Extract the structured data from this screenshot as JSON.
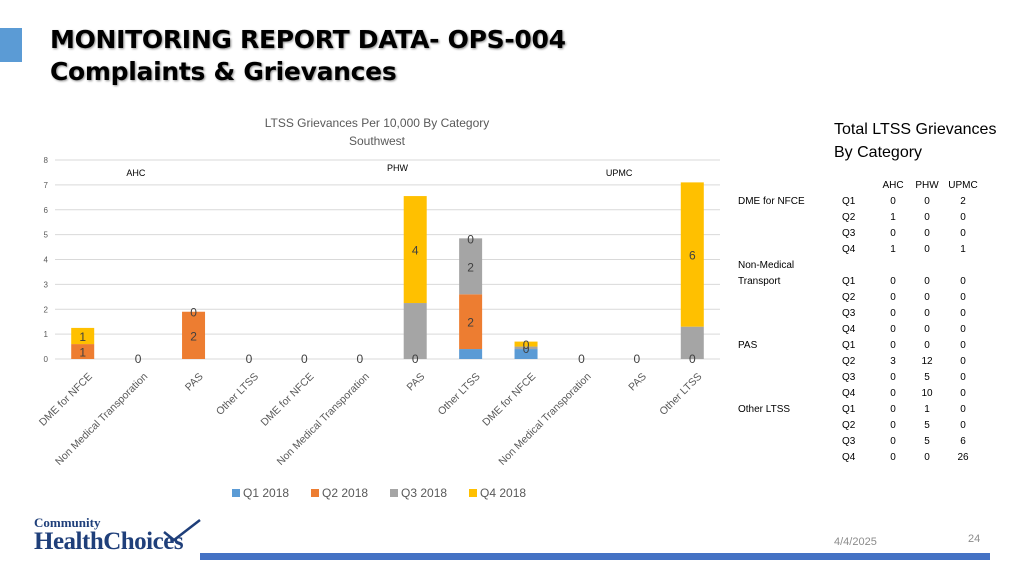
{
  "title": {
    "line1": "MONITORING REPORT DATA- OPS-004",
    "line2": "Complaints & Grievances"
  },
  "chart_data": {
    "type": "bar",
    "stacked": true,
    "title": "LTSS Grievances Per 10,000 By Category",
    "subtitle": "Southwest",
    "ylim": [
      0,
      8
    ],
    "yticks": [
      0,
      1,
      2,
      3,
      4,
      5,
      6,
      7,
      8
    ],
    "grid": true,
    "legend_position": "bottom",
    "categories": [
      "DME for NFCE",
      "Non Medical Transporation",
      "PAS",
      "Other LTSS",
      "DME for NFCE",
      "Non Medical Transporation",
      "PAS",
      "Other LTSS",
      "DME for NFCE",
      "Non Medical Transporation",
      "PAS",
      "Other LTSS"
    ],
    "groups": [
      {
        "name": "AHC",
        "start": 0,
        "end": 3
      },
      {
        "name": "PHW",
        "start": 4,
        "end": 7
      },
      {
        "name": "UPMC",
        "start": 8,
        "end": 11
      }
    ],
    "series": [
      {
        "name": "Q1 2018",
        "color": "#5b9bd5",
        "values": [
          0,
          0,
          0,
          0,
          0,
          0,
          0,
          0.4,
          0.4,
          0,
          0,
          0
        ]
      },
      {
        "name": "Q2 2018",
        "color": "#ed7d31",
        "values": [
          0.6,
          0,
          1.9,
          0,
          0,
          0,
          0,
          2.2,
          0,
          0,
          0,
          0
        ]
      },
      {
        "name": "Q3 2018",
        "color": "#a5a5a5",
        "values": [
          0,
          0,
          0,
          0,
          0,
          0,
          2.25,
          2.25,
          0.1,
          0,
          0,
          1.3
        ]
      },
      {
        "name": "Q4 2018",
        "color": "#ffc000",
        "values": [
          0.65,
          0,
          0,
          0,
          0,
          0,
          4.3,
          0,
          0.2,
          0,
          0,
          5.8
        ]
      }
    ],
    "labels": [
      [
        "",
        "",
        "",
        "",
        "",
        "",
        "",
        "",
        "",
        "",
        "",
        ""
      ],
      [
        "1",
        "",
        "2",
        "",
        "",
        "",
        "",
        "2",
        "",
        "",
        "",
        ""
      ],
      [
        "",
        "",
        "",
        "",
        "",
        "",
        "",
        "2",
        "0",
        "",
        "",
        ""
      ],
      [
        "1",
        "",
        "0",
        "",
        "",
        "",
        "4",
        "0",
        "0",
        "",
        "",
        "6"
      ]
    ],
    "zero_labels": [
      "",
      "0",
      "",
      "0",
      "0",
      "0",
      "0",
      "",
      "",
      "0",
      "0",
      "0"
    ]
  },
  "table": {
    "title_line1": "Total LTSS Grievances",
    "title_line2": "By Category",
    "headers": [
      "AHC",
      "PHW",
      "UPMC"
    ],
    "rows": [
      {
        "cat": "DME for NFCE",
        "q": "Q1",
        "v": [
          "0",
          "0",
          "2"
        ]
      },
      {
        "cat": "",
        "q": "Q2",
        "v": [
          "1",
          "0",
          "0"
        ]
      },
      {
        "cat": "",
        "q": "Q3",
        "v": [
          "0",
          "0",
          "0"
        ]
      },
      {
        "cat": "",
        "q": "Q4",
        "v": [
          "1",
          "0",
          "1"
        ]
      },
      {
        "cat": "Non-Medical",
        "q": "",
        "v": [
          "",
          "",
          ""
        ]
      },
      {
        "cat": "Transport",
        "q": "Q1",
        "v": [
          "0",
          "0",
          "0"
        ]
      },
      {
        "cat": "",
        "q": "Q2",
        "v": [
          "0",
          "0",
          "0"
        ]
      },
      {
        "cat": "",
        "q": "Q3",
        "v": [
          "0",
          "0",
          "0"
        ]
      },
      {
        "cat": "",
        "q": "Q4",
        "v": [
          "0",
          "0",
          "0"
        ]
      },
      {
        "cat": "PAS",
        "q": "Q1",
        "v": [
          "0",
          "0",
          "0"
        ]
      },
      {
        "cat": "",
        "q": "Q2",
        "v": [
          "3",
          "12",
          "0"
        ]
      },
      {
        "cat": "",
        "q": "Q3",
        "v": [
          "0",
          "5",
          "0"
        ]
      },
      {
        "cat": "",
        "q": "Q4",
        "v": [
          "0",
          "10",
          "0"
        ]
      },
      {
        "cat": "Other LTSS",
        "q": "Q1",
        "v": [
          "0",
          "1",
          "0"
        ]
      },
      {
        "cat": "",
        "q": "Q2",
        "v": [
          "0",
          "5",
          "0"
        ]
      },
      {
        "cat": "",
        "q": "Q3",
        "v": [
          "0",
          "5",
          "6"
        ]
      },
      {
        "cat": "",
        "q": "Q4",
        "v": [
          "0",
          "0",
          "26"
        ]
      }
    ]
  },
  "logo": {
    "line1": "Community",
    "line2": "HealthChoices"
  },
  "footer": {
    "date": "4/4/2025",
    "page": "24"
  },
  "colors": {
    "accent": "#5b9bd5",
    "bar": "#4472c4",
    "logo": "#1f3f7a"
  }
}
